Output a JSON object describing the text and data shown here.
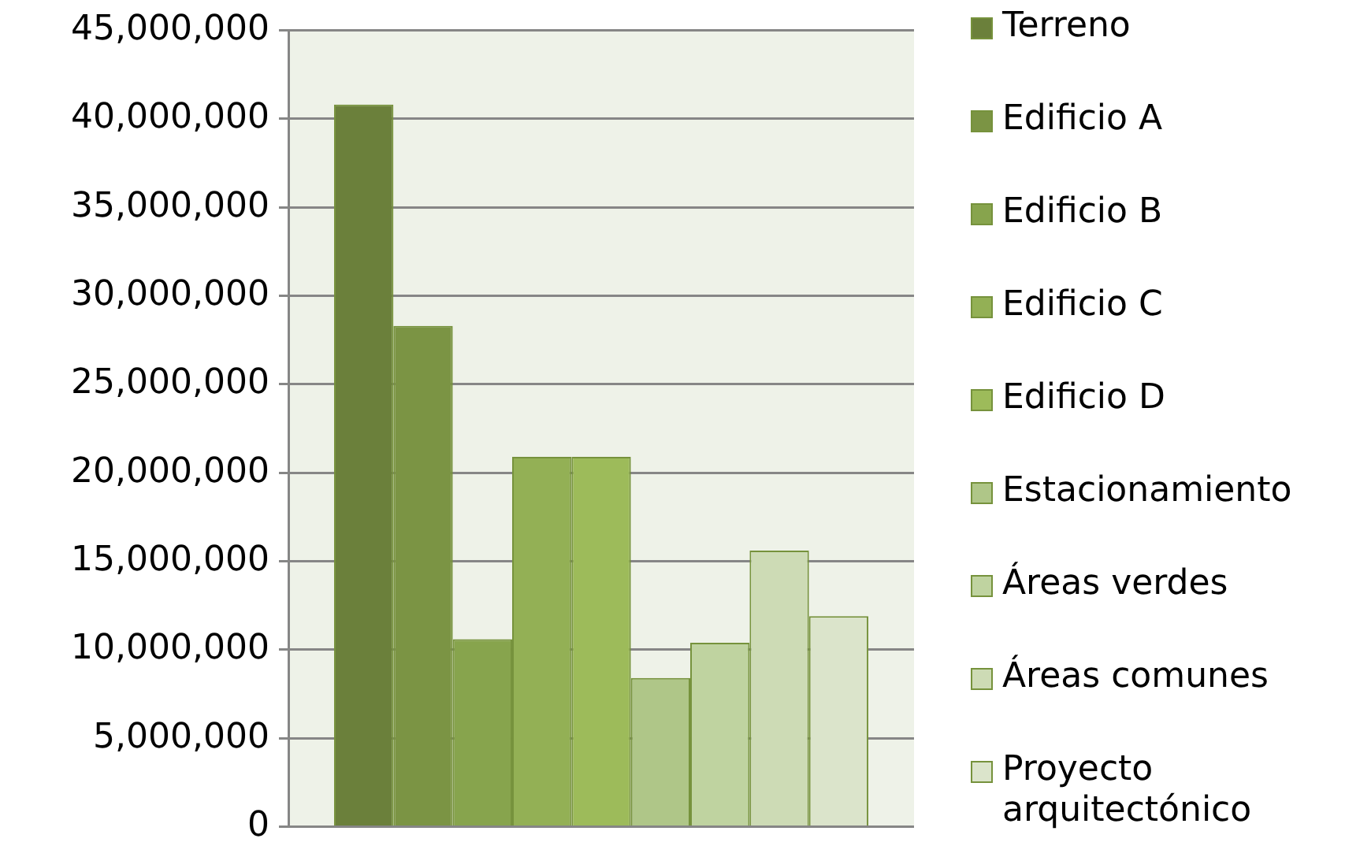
{
  "chart_data": {
    "type": "bar",
    "categories": [
      null
    ],
    "series": [
      {
        "name": "Terreno",
        "color": "#6b803b",
        "values": [
          40800000
        ]
      },
      {
        "name": "Edificio A",
        "color": "#7b9444",
        "values": [
          28300000
        ]
      },
      {
        "name": "Edificio B",
        "color": "#87a44d",
        "values": [
          10600000
        ]
      },
      {
        "name": "Edificio C",
        "color": "#93b055",
        "values": [
          20900000
        ]
      },
      {
        "name": "Edificio D",
        "color": "#9dbb5a",
        "values": [
          20900000
        ]
      },
      {
        "name": "Estacionamiento",
        "color": "#afc688",
        "values": [
          8400000
        ]
      },
      {
        "name": "Áreas verdes",
        "color": "#bfd3a0",
        "values": [
          10400000
        ]
      },
      {
        "name": "Áreas comunes",
        "color": "#cddbb5",
        "values": [
          15600000
        ]
      },
      {
        "name": "Proyecto arquitectónico",
        "color": "#dbe4cb",
        "values": [
          11900000
        ]
      }
    ],
    "ylim": [
      0,
      45000000
    ],
    "yticks": [
      {
        "value": 0,
        "label": "0"
      },
      {
        "value": 5000000,
        "label": "5,000,000"
      },
      {
        "value": 10000000,
        "label": "10,000,000"
      },
      {
        "value": 15000000,
        "label": "15,000,000"
      },
      {
        "value": 20000000,
        "label": "20,000,000"
      },
      {
        "value": 25000000,
        "label": "25,000,000"
      },
      {
        "value": 30000000,
        "label": "30,000,000"
      },
      {
        "value": 35000000,
        "label": "35,000,000"
      },
      {
        "value": 40000000,
        "label": "40,000,000"
      },
      {
        "value": 45000000,
        "label": "45,000,000"
      }
    ],
    "grid": "y",
    "legend": "right"
  }
}
